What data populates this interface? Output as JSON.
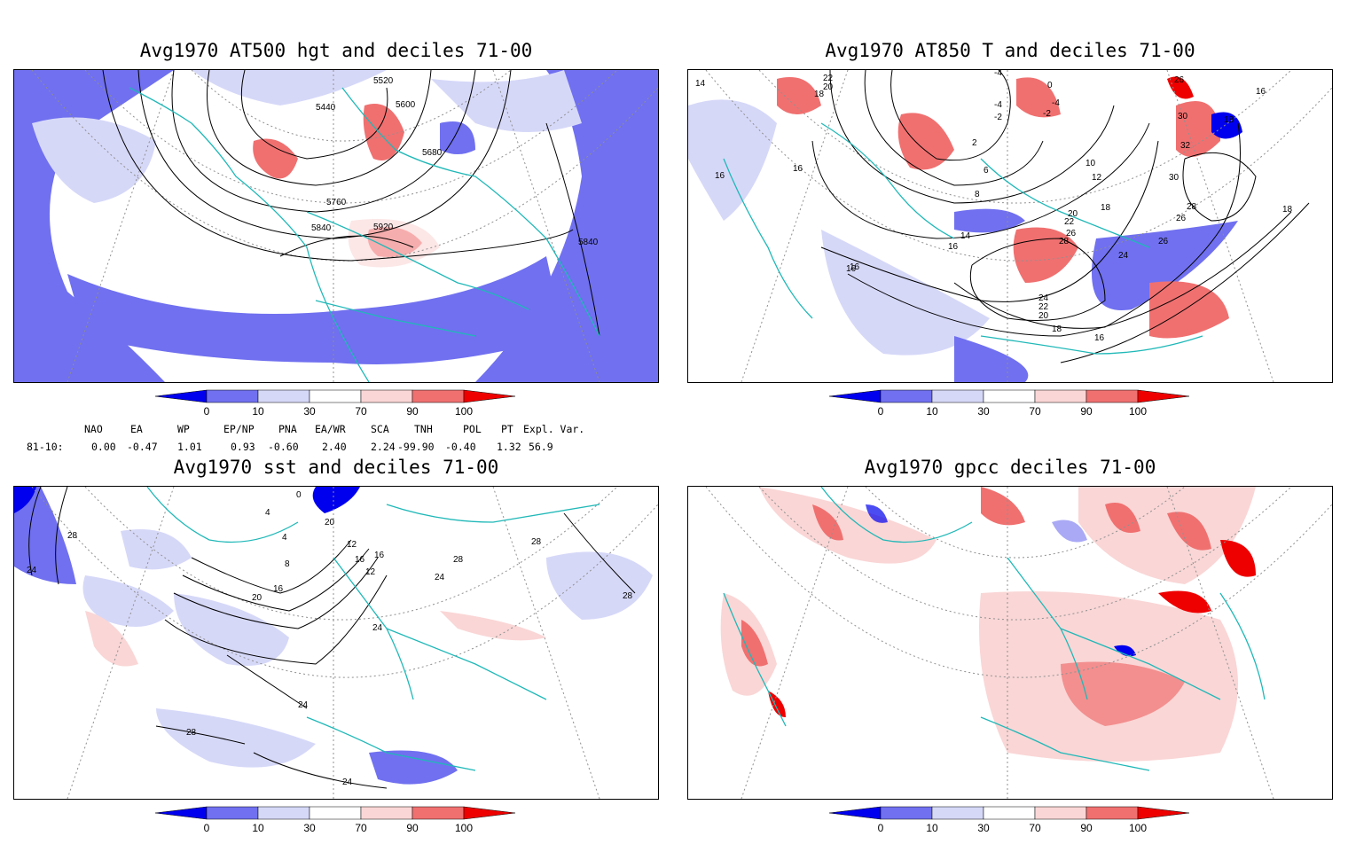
{
  "panels": [
    {
      "title": "Avg1970 AT500 hgt and deciles 71-00",
      "contour_labels": [
        "5440",
        "5520",
        "5600",
        "5680",
        "5760",
        "5840",
        "5920",
        "5840"
      ]
    },
    {
      "title": "Avg1970 AT850 T and deciles 71-00",
      "contour_labels": [
        "14",
        "22",
        "20",
        "18",
        "-4",
        "0",
        "-4",
        "-2",
        "-4",
        "-2",
        "2",
        "6",
        "8",
        "10",
        "12",
        "16",
        "16",
        "16",
        "14",
        "16",
        "18",
        "20",
        "22",
        "26",
        "28",
        "24",
        "24",
        "22",
        "20",
        "18",
        "16",
        "30",
        "32",
        "30",
        "26",
        "26",
        "28",
        "26",
        "18",
        "16",
        "18",
        "16"
      ]
    },
    {
      "title": "Avg1970 sst and deciles 71-00",
      "contour_labels": [
        "24",
        "28",
        "0",
        "4",
        "4",
        "8",
        "12",
        "16",
        "20",
        "28",
        "28",
        "24",
        "24",
        "28",
        "24",
        "16",
        "16",
        "12",
        "28",
        "20",
        "24"
      ]
    },
    {
      "title": "Avg1970 gpcc deciles 71-00",
      "contour_labels": []
    }
  ],
  "colorbar": {
    "labels": [
      "0",
      "10",
      "30",
      "70",
      "90",
      "100"
    ],
    "colors": {
      "deep_blue": "#0000ee",
      "mid_blue": "#7070f0",
      "light_blue": "#d6d8f8",
      "white": "#ffffff",
      "light_red": "#fad6d6",
      "mid_red": "#f07070",
      "deep_red": "#ee0000"
    }
  },
  "indices": {
    "headers": [
      "NAO",
      "EA",
      "WP",
      "EP/NP",
      "PNA",
      "EA/WR",
      "SCA",
      "TNH",
      "POL",
      "PT",
      "Expl. Var."
    ],
    "row_label": "81-10:",
    "values": [
      "0.00",
      "-0.47",
      "1.01",
      "0.93",
      "-0.60",
      "2.40",
      "2.24",
      "-99.90",
      "-0.40",
      "1.32",
      "56.9"
    ]
  },
  "map_colors": {
    "coast": "#20b8b8",
    "grid": "#909090",
    "contour": "#000000"
  }
}
